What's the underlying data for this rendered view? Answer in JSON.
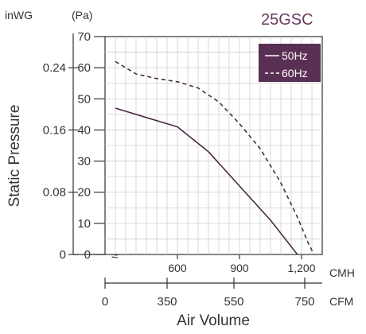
{
  "chart_data": {
    "type": "line",
    "title": "25GSC",
    "ylabel": "Static Pressure",
    "xlabel": "Air Volume",
    "y_left_unit": "inWG",
    "y_right_unit": "(Pa)",
    "x_top_unit": "CMH",
    "x_bottom_unit": "CFM",
    "ylim_pa": [
      0,
      70
    ],
    "y_pa_ticks": [
      "0",
      "10",
      "20",
      "30",
      "40",
      "50",
      "60",
      "70"
    ],
    "y_inwg_ticks": [
      {
        "label": "0",
        "pa": 0
      },
      {
        "label": "0.08",
        "pa": 20
      },
      {
        "label": "0.16",
        "pa": 40
      },
      {
        "label": "0.24",
        "pa": 60
      }
    ],
    "xlim_cmh": [
      250,
      1300
    ],
    "x_cmh_ticks": [
      {
        "label": "600",
        "value": 600
      },
      {
        "label": "900",
        "value": 900
      },
      {
        "label": "1,200",
        "value": 1200
      }
    ],
    "x_cfm_ticks": [
      {
        "label": "0",
        "value": 0
      },
      {
        "label": "350",
        "value": 350
      },
      {
        "label": "550",
        "value": 550
      },
      {
        "label": "750",
        "value": 750
      }
    ],
    "axis_break_symbol": "≈",
    "grid": true,
    "legend_position": "top-right",
    "series": [
      {
        "name": "50Hz",
        "style": "solid",
        "color": "#4a2b48",
        "points": [
          [
            300,
            47
          ],
          [
            450,
            44
          ],
          [
            600,
            41
          ],
          [
            750,
            33
          ],
          [
            900,
            22
          ],
          [
            1050,
            11
          ],
          [
            1180,
            0
          ]
        ]
      },
      {
        "name": "60Hz",
        "style": "dashed",
        "color": "#4a2b48",
        "points": [
          [
            300,
            62
          ],
          [
            400,
            58
          ],
          [
            500,
            56.5
          ],
          [
            600,
            55.5
          ],
          [
            700,
            53.5
          ],
          [
            800,
            49
          ],
          [
            900,
            42
          ],
          [
            1000,
            34
          ],
          [
            1100,
            23
          ],
          [
            1180,
            12
          ],
          [
            1230,
            4
          ],
          [
            1260,
            0
          ]
        ]
      }
    ]
  },
  "colors": {
    "legend_bg": "#5a2f54",
    "grid": "#d0d0d0",
    "axis": "#333333"
  }
}
